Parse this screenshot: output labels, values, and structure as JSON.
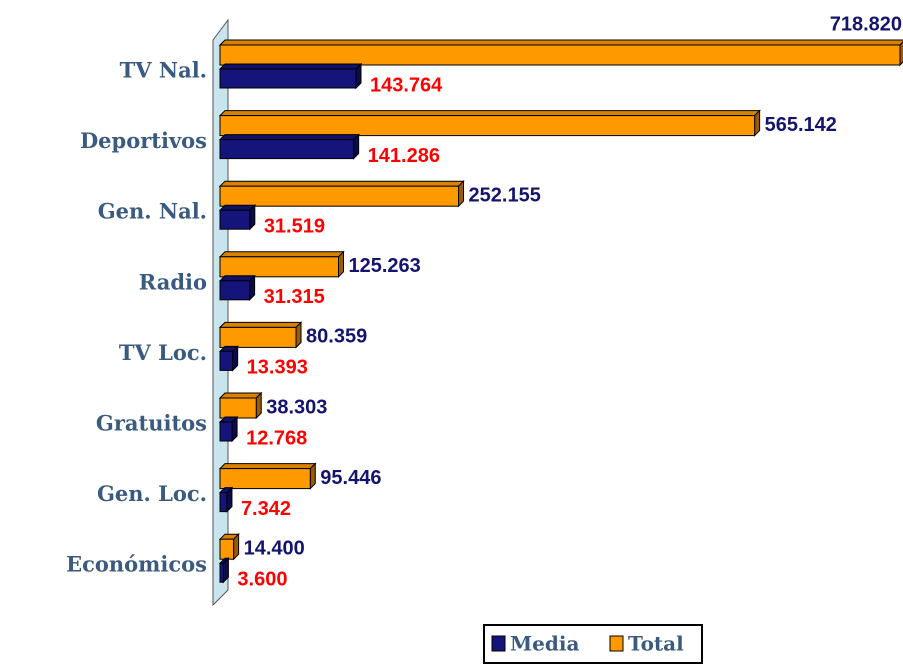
{
  "chart_data": {
    "type": "bar",
    "orientation": "horizontal",
    "categories": [
      "TV Nal.",
      "Deportivos",
      "Gen. Nal.",
      "Radio",
      "TV Loc.",
      "Gratuitos",
      "Gen. Loc.",
      "Económicos"
    ],
    "series": [
      {
        "name": "Total",
        "color": "#ff9900",
        "label_color": "#14146e",
        "values": [
          718820,
          565142,
          252155,
          125263,
          80359,
          38303,
          95446,
          14400
        ],
        "value_labels": [
          "718.820",
          "565.142",
          "252.155",
          "125.263",
          "80.359",
          "38.303",
          "95.446",
          "14.400"
        ]
      },
      {
        "name": "Media",
        "color": "#14147a",
        "label_color": "#ff0000",
        "values": [
          143764,
          141286,
          31519,
          31315,
          13393,
          12768,
          7342,
          3600
        ],
        "value_labels": [
          "143.764",
          "141.286",
          "31.519",
          "31.315",
          "13.393",
          "12.768",
          "7.342",
          "3.600"
        ]
      }
    ],
    "legend": "bottom"
  }
}
